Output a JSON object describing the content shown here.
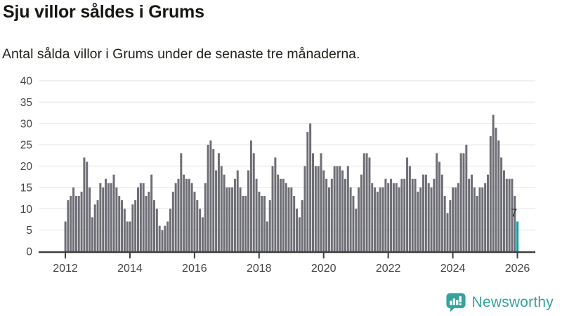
{
  "header": {
    "title": "Sju villor såldes i Grums",
    "subtitle": "Antal sålda villor i Grums under de senaste tre månaderna."
  },
  "chart_data": {
    "type": "bar",
    "title": "Sju villor såldes i Grums",
    "subtitle": "Antal sålda villor i Grums under de senaste tre månaderna.",
    "xlabel": "",
    "ylabel": "",
    "ylim": [
      0,
      40
    ],
    "yticks": [
      0,
      5,
      10,
      15,
      20,
      25,
      30,
      35,
      40
    ],
    "xticks": [
      2012,
      2014,
      2016,
      2018,
      2020,
      2022,
      2024,
      2026
    ],
    "x_start": "2012-01",
    "frequency": "monthly",
    "grid": "horizontal",
    "legend": "none",
    "bar_color": "#6E6E76",
    "highlight_color": "#00A0A4",
    "axis_color": "#3F3F3F",
    "gridline_color": "#E8E8E8",
    "tick_label_color": "#444444",
    "last_value_label": "7",
    "values": [
      7,
      12,
      13,
      15,
      13,
      13,
      14,
      22,
      21,
      15,
      8,
      11,
      12,
      16,
      15,
      17,
      16,
      16,
      18,
      15,
      13,
      12,
      10,
      7,
      7,
      11,
      12,
      15,
      16,
      16,
      13,
      14,
      18,
      12,
      10,
      6,
      5,
      6,
      7,
      10,
      14,
      16,
      17,
      23,
      18,
      17,
      17,
      16,
      14,
      12,
      10,
      8,
      16,
      25,
      26,
      24,
      19,
      23,
      20,
      18,
      15,
      15,
      15,
      17,
      19,
      15,
      13,
      13,
      19,
      26,
      23,
      17,
      14,
      13,
      13,
      7,
      12,
      20,
      22,
      18,
      17,
      17,
      16,
      15,
      15,
      13,
      10,
      8,
      12,
      20,
      28,
      30,
      23,
      20,
      20,
      23,
      19,
      17,
      15,
      17,
      20,
      20,
      20,
      19,
      17,
      20,
      15,
      13,
      10,
      15,
      18,
      23,
      23,
      22,
      16,
      15,
      14,
      15,
      15,
      17,
      16,
      17,
      16,
      16,
      15,
      17,
      17,
      22,
      20,
      17,
      17,
      14,
      15,
      18,
      18,
      16,
      15,
      17,
      23,
      21,
      18,
      13,
      9,
      12,
      15,
      15,
      16,
      23,
      23,
      25,
      17,
      18,
      15,
      13,
      15,
      15,
      16,
      18,
      27,
      32,
      29,
      26,
      22,
      19,
      17,
      17,
      17,
      13,
      7
    ]
  },
  "footer": {
    "brand": "Newsworthy",
    "brand_color": "#35A29B",
    "logo_icon": "newsworthy-speech-bubble-bar-chart-icon"
  }
}
